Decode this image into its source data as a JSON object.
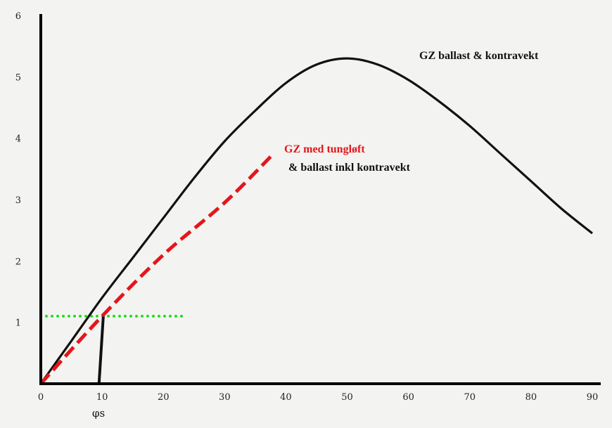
{
  "chart_data": {
    "type": "line",
    "title": "",
    "xlabel": "",
    "ylabel": "",
    "xlim": [
      0,
      90
    ],
    "ylim": [
      0,
      6
    ],
    "x_ticks": [
      "0",
      "10",
      "20",
      "30",
      "40",
      "50",
      "60",
      "70",
      "80",
      "90"
    ],
    "y_ticks": [
      "1",
      "2",
      "3",
      "4",
      "5",
      "6"
    ],
    "grid": false,
    "legend": "none",
    "series": [
      {
        "name": "GZ ballast & kontravekt",
        "color": "#111111",
        "style": "solid",
        "x": [
          0,
          5,
          10,
          15,
          20,
          25,
          30,
          35,
          40,
          45,
          50,
          55,
          60,
          65,
          70,
          75,
          80,
          85,
          90
        ],
        "y": [
          0,
          0.7,
          1.4,
          2.05,
          2.7,
          3.35,
          3.95,
          4.45,
          4.9,
          5.2,
          5.3,
          5.2,
          4.95,
          4.6,
          4.2,
          3.75,
          3.3,
          2.85,
          2.45
        ]
      },
      {
        "name": "GZ med tungløft & ballast inkl kontravekt",
        "color": "#e4161b",
        "style": "dashed",
        "x": [
          0,
          10,
          20,
          30,
          38
        ],
        "y": [
          0,
          1.1,
          2.1,
          2.95,
          3.75
        ]
      }
    ],
    "reference_lines": [
      {
        "kind": "horizontal",
        "y": 1.1,
        "x_from": 0,
        "x_to": 23,
        "color": "#22dd22",
        "style": "dotted"
      },
      {
        "kind": "segment",
        "from": [
          9.5,
          0
        ],
        "to": [
          10.2,
          1.1
        ],
        "color": "#111111",
        "style": "solid"
      }
    ],
    "annotations": [
      {
        "id": "gz_ballast",
        "text": "GZ ballast  & kontravekt",
        "color": "#111111"
      },
      {
        "id": "gz_tungloft_1",
        "text": "GZ med tungløft",
        "color": "#e4161b"
      },
      {
        "id": "gz_tungloft_2",
        "text": "& ballast  inkl  kontravekt",
        "color": "#111111"
      },
      {
        "id": "phi_s",
        "text": "φs",
        "color": "#111111"
      }
    ]
  }
}
